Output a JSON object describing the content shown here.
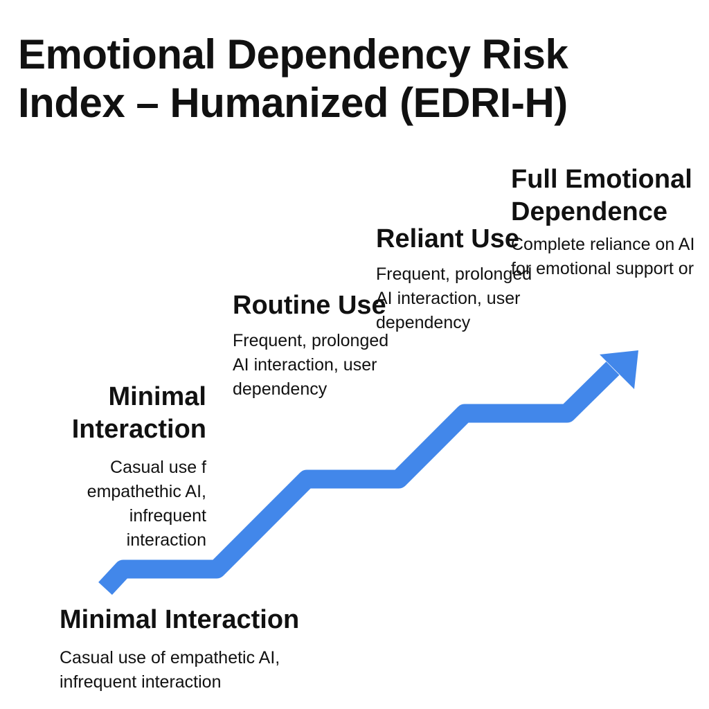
{
  "title": "Emotional Dependency Risk Index – Humanized (EDRI-H)",
  "colors": {
    "arrow": "#4287ea",
    "text": "#111111",
    "background": "#ffffff"
  },
  "stages": [
    {
      "title": "Minimal Interaction",
      "description": "Casual use f empathethic AI, infrequent interaction"
    },
    {
      "title": "Routine Use",
      "description": "Frequent, prolonged AI interaction, user dependency"
    },
    {
      "title": "Reliant Use",
      "description": "Frequent, prolonged AI interaction, user dependency"
    },
    {
      "title": "Full Emotional Dependence",
      "description": "Complete reliance on AI for emotional support or"
    }
  ],
  "footer_stage": {
    "title": "Minimal Interaction",
    "description": "Casual use of empathetic AI, infrequent interaction"
  }
}
